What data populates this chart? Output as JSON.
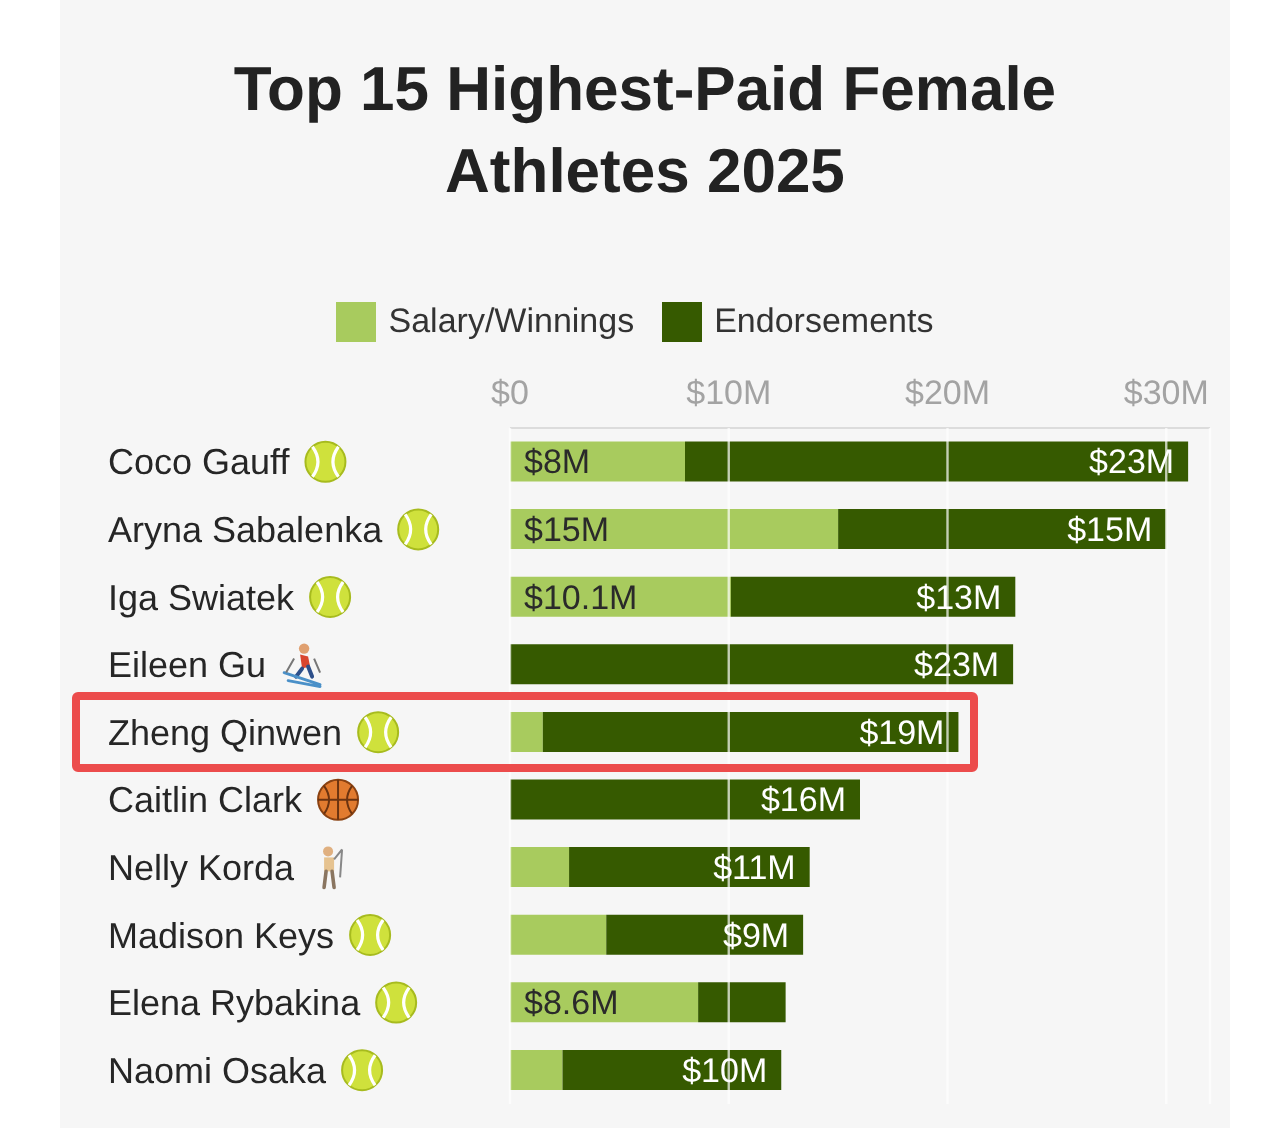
{
  "chart_data": {
    "type": "bar",
    "orientation": "horizontal",
    "stacked": true,
    "title": "Top 15 Highest-Paid Female Athletes 2025",
    "categories": [
      "Coco Gauff",
      "Aryna Sabalenka",
      "Iga Swiatek",
      "Eileen Gu",
      "Zheng Qinwen",
      "Caitlin Clark",
      "Nelly Korda",
      "Madison Keys",
      "Elena Rybakina",
      "Naomi Osaka"
    ],
    "series": [
      {
        "name": "Salary/Winnings",
        "color": "#a8cb5e",
        "values": [
          8,
          15,
          10.1,
          0,
          1.5,
          0,
          2.7,
          4.4,
          8.6,
          2.4
        ],
        "value_labels": [
          "$8M",
          "$15M",
          "$10.1M",
          null,
          null,
          null,
          null,
          null,
          "$8.6M",
          null
        ]
      },
      {
        "name": "Endorsements",
        "color": "#365a00",
        "values": [
          23,
          15,
          13,
          23,
          19,
          16,
          11,
          9,
          4,
          10
        ],
        "value_labels": [
          "$23M",
          "$15M",
          "$13M",
          "$23M",
          "$19M",
          "$16M",
          "$11M",
          "$9M",
          null,
          "$10M"
        ]
      }
    ],
    "xlim": [
      0,
      32
    ],
    "xticks": [
      {
        "value": 0,
        "label": "$0"
      },
      {
        "value": 10,
        "label": "$10M"
      },
      {
        "value": 20,
        "label": "$20M"
      },
      {
        "value": 30,
        "label": "$30M"
      }
    ],
    "grid": "x",
    "legend": "top"
  }
}
